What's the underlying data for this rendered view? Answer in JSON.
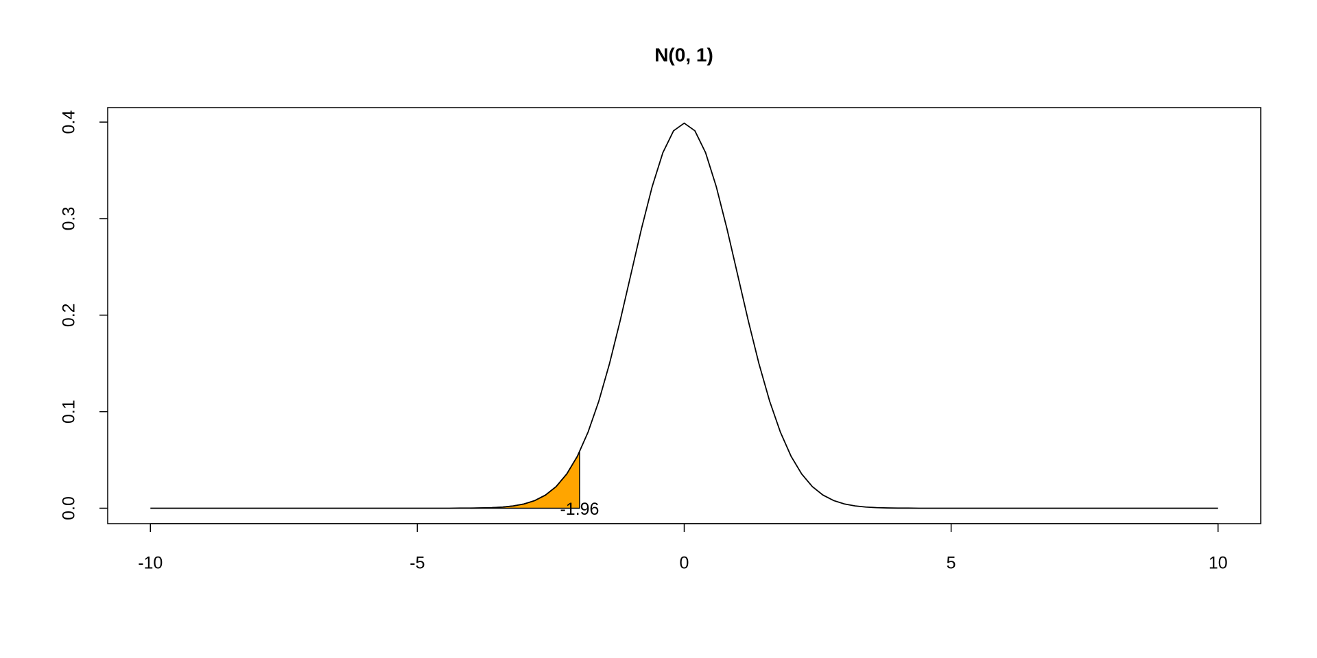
{
  "chart_data": {
    "type": "line",
    "title": "N(0, 1)",
    "x": [
      -10,
      -9.8,
      -9.6,
      -9.4,
      -9.2,
      -9,
      -8.8,
      -8.6,
      -8.4,
      -8.2,
      -8,
      -7.8,
      -7.6,
      -7.4,
      -7.2,
      -7,
      -6.8,
      -6.6,
      -6.4,
      -6.2,
      -6,
      -5.8,
      -5.6,
      -5.4,
      -5.2,
      -5,
      -4.8,
      -4.6,
      -4.4,
      -4.2,
      -4,
      -3.8,
      -3.6,
      -3.4,
      -3.2,
      -3,
      -2.8,
      -2.6,
      -2.4,
      -2.2,
      -2,
      -1.8,
      -1.6,
      -1.4,
      -1.2,
      -1,
      -0.8,
      -0.6,
      -0.4,
      -0.2,
      0,
      0.2,
      0.4,
      0.6,
      0.8,
      1,
      1.2,
      1.4,
      1.6,
      1.8,
      2,
      2.2,
      2.4,
      2.6,
      2.8,
      3,
      3.2,
      3.4,
      3.6,
      3.8,
      4,
      4.2,
      4.4,
      4.6,
      4.8,
      5,
      5.2,
      5.4,
      5.6,
      5.8,
      6,
      6.2,
      6.4,
      6.6,
      6.8,
      7,
      7.2,
      7.4,
      7.6,
      7.8,
      8,
      8.2,
      8.4,
      8.6,
      8.8,
      9,
      9.2,
      9.4,
      9.6,
      9.8,
      10
    ],
    "series": [
      {
        "color": "#000000",
        "values": [
          0,
          0,
          0,
          0,
          0,
          0,
          0,
          0,
          0,
          0,
          0,
          0,
          0,
          0,
          0,
          0,
          0,
          0,
          0,
          0,
          0,
          0,
          0,
          0,
          0,
          0,
          0,
          0,
          0,
          0.0001,
          0.0001,
          0.0003,
          0.0006,
          0.0012,
          0.0024,
          0.0044,
          0.0079,
          0.0136,
          0.0224,
          0.0355,
          0.054,
          0.079,
          0.1109,
          0.1497,
          0.1942,
          0.242,
          0.2897,
          0.3332,
          0.3683,
          0.391,
          0.3989,
          0.391,
          0.3683,
          0.3332,
          0.2897,
          0.242,
          0.1942,
          0.1497,
          0.1109,
          0.079,
          0.054,
          0.0355,
          0.0224,
          0.0136,
          0.0079,
          0.0044,
          0.0024,
          0.0012,
          0.0006,
          0.0003,
          0.0001,
          0.0001,
          0,
          0,
          0,
          0,
          0,
          0,
          0,
          0,
          0,
          0,
          0,
          0,
          0,
          0,
          0,
          0,
          0,
          0,
          0,
          0,
          0,
          0,
          0,
          0,
          0,
          0,
          0,
          0,
          0
        ]
      }
    ],
    "shade": {
      "color": "#ffa500",
      "x": [
        -4,
        -3.8,
        -3.6,
        -3.4,
        -3.2,
        -3,
        -2.8,
        -2.6,
        -2.4,
        -2.2,
        -2,
        -1.96
      ],
      "values": [
        0.0001,
        0.0003,
        0.0006,
        0.0012,
        0.0024,
        0.0044,
        0.0079,
        0.0136,
        0.0224,
        0.0355,
        0.054,
        0.0584
      ]
    },
    "annotation": {
      "text": "-1.96",
      "x": -1.96,
      "y": 0
    },
    "xlim": [
      -10.8,
      10.8
    ],
    "xticks": [
      -10,
      -5,
      0,
      5,
      10
    ],
    "ylim": [
      -0.016,
      0.415
    ],
    "yticks": [
      {
        "value": 0,
        "label": "0.0"
      },
      0.1,
      0.2,
      0.3,
      0.4
    ]
  }
}
